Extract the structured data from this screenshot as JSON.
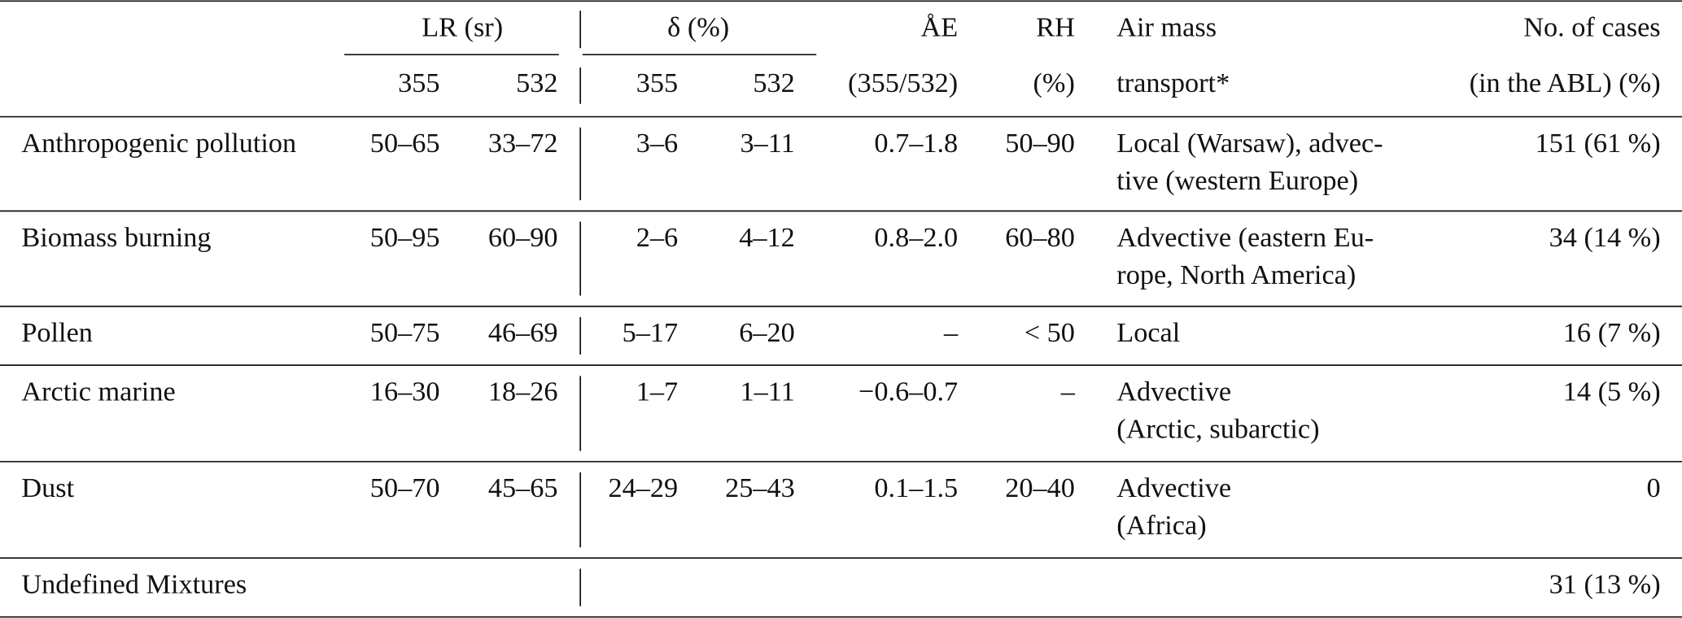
{
  "table": {
    "header": {
      "lr": "LR (sr)",
      "delta": "δ (%)",
      "sub": [
        "355",
        "532",
        "355",
        "532"
      ],
      "ae": [
        "ÅE",
        "(355/532)"
      ],
      "rh": [
        "RH",
        "(%)"
      ],
      "transport": [
        "Air mass",
        "transport*"
      ],
      "cases": [
        "No. of cases",
        "(in the ABL) (%)"
      ]
    },
    "rows": [
      {
        "label": "Anthropogenic pollution",
        "cells": [
          "50–65",
          "33–72",
          "3–6",
          "3–11",
          "0.7–1.8",
          "50–90"
        ],
        "transport": [
          "Local (Warsaw), advec-",
          "tive (western Europe)"
        ],
        "cases": "151 (61 %)"
      },
      {
        "label": "Biomass burning",
        "cells": [
          "50–95",
          "60–90",
          "2–6",
          "4–12",
          "0.8–2.0",
          "60–80"
        ],
        "transport": [
          "Advective (eastern Eu-",
          "rope, North America)"
        ],
        "cases": "34 (14 %)"
      },
      {
        "label": "Pollen",
        "cells": [
          "50–75",
          "46–69",
          "5–17",
          "6–20",
          "–",
          "< 50"
        ],
        "transport": [
          "Local"
        ],
        "cases": "16 (7 %)"
      },
      {
        "label": "Arctic marine",
        "cells": [
          "16–30",
          "18–26",
          "1–7",
          "1–11",
          "−0.6–0.7",
          "–"
        ],
        "transport": [
          "Advective",
          "(Arctic, subarctic)"
        ],
        "cases": "14 (5 %)"
      },
      {
        "label": "Dust",
        "cells": [
          "50–70",
          "45–65",
          "24–29",
          "25–43",
          "0.1–1.5",
          "20–40"
        ],
        "transport": [
          "Advective",
          "(Africa)"
        ],
        "cases": "0"
      },
      {
        "label": "Undefined Mixtures",
        "cells": [
          null,
          null,
          null,
          null,
          null,
          null
        ],
        "transport": [],
        "cases": "31 (13 %)"
      }
    ]
  }
}
